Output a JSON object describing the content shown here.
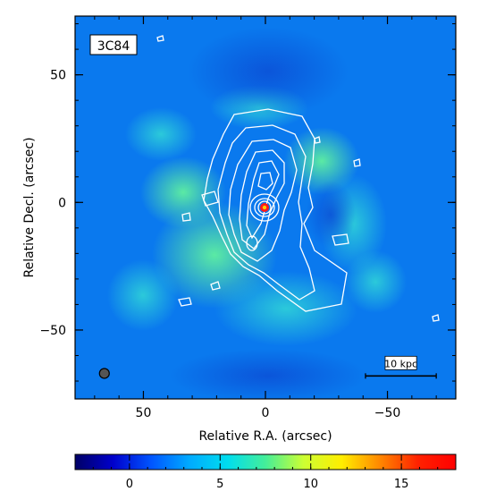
{
  "chart_data": {
    "type": "heatmap",
    "title": "",
    "label": "3C84",
    "xlabel": "Relative R.A. (arcsec)",
    "ylabel": "Relative Decl. (arcsec)",
    "xlim": [
      78,
      -78
    ],
    "ylim": [
      -77,
      73
    ],
    "x_ticks": [
      50,
      0,
      -50
    ],
    "x_tick_labels": [
      "50",
      "0",
      "−50"
    ],
    "y_ticks": [
      50,
      0,
      -50
    ],
    "y_tick_labels": [
      "50",
      "0",
      "−50"
    ],
    "scale_bar_label": "10 kpc",
    "scale_bar_x_range": [
      -41,
      -70
    ],
    "scale_bar_y": -68,
    "beam_position": [
      66,
      -67
    ],
    "peak_position": [
      0,
      0
    ],
    "colorbar": {
      "range": [
        -3,
        18
      ],
      "ticks": [
        0,
        5,
        10,
        15
      ],
      "tick_labels": [
        "0",
        "5",
        "10",
        "15"
      ],
      "colormap": [
        "#000066",
        "#0000cc",
        "#0055ff",
        "#00aaff",
        "#00ddee",
        "#44ee99",
        "#ccff33",
        "#ffee00",
        "#ff8800",
        "#ff2200",
        "#ff0000"
      ]
    },
    "colors": {
      "background_field": "#0a79ee",
      "ring_emission": "#46d8b8",
      "contour_lines": "#ffffff",
      "core": "#ff1a1a"
    },
    "grid": false
  }
}
